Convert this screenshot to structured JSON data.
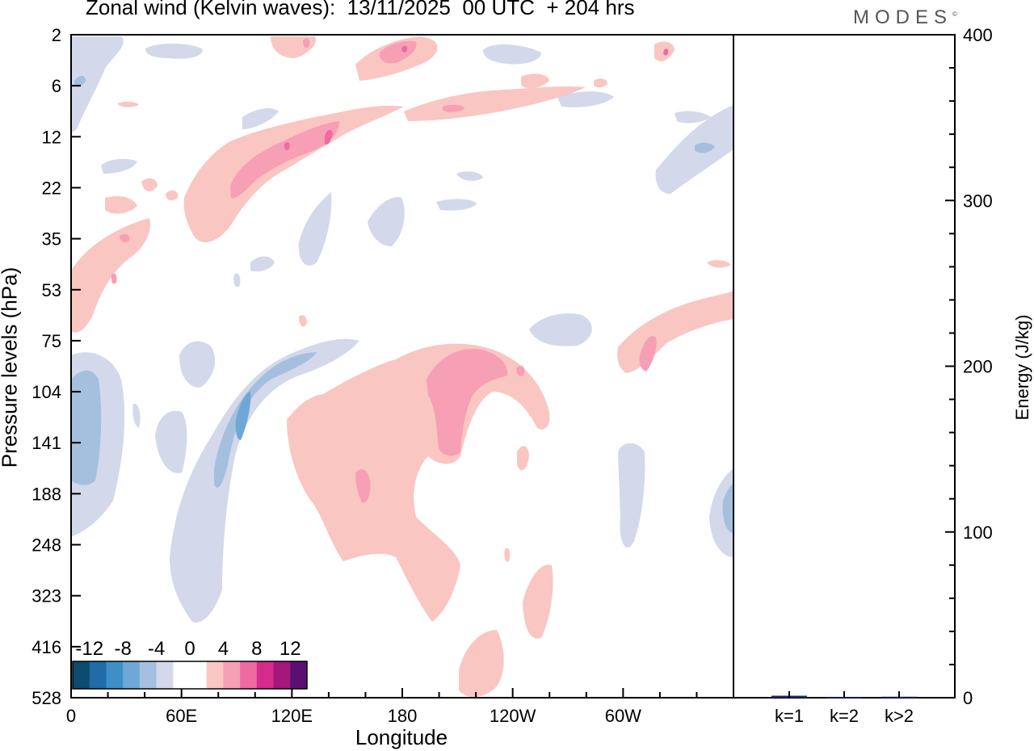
{
  "title": "Zonal wind (Kelvin waves):  13/11/2025  00 UTC  + 204 hrs",
  "brand": "MODES",
  "brand_mark": "©",
  "chart_data": [
    {
      "type": "heatmap",
      "title": "Zonal wind (Kelvin waves):  13/11/2025  00 UTC  + 204 hrs",
      "xlabel": "Longitude",
      "ylabel": "Pressure levels (hPa)",
      "x_ticks": [
        "0",
        "60E",
        "120E",
        "180",
        "120W",
        "60W"
      ],
      "x_tick_degrees": [
        0,
        60,
        120,
        180,
        240,
        300
      ],
      "x_range_degrees": [
        0,
        360
      ],
      "y_levels": [
        "2",
        "6",
        "12",
        "22",
        "35",
        "53",
        "75",
        "104",
        "141",
        "188",
        "248",
        "323",
        "416",
        "528"
      ],
      "colorbar": {
        "labels": [
          "-12",
          "-8",
          "-4",
          "0",
          "4",
          "8",
          "12"
        ],
        "colors": [
          "#0c4a6e",
          "#1f6ca6",
          "#3e8fc6",
          "#6fa8d6",
          "#a5bfdf",
          "#d3d8ea",
          "#ffffff",
          "#ffffff",
          "#f9c6c2",
          "#f79fb5",
          "#ee6aa1",
          "#d62a8d",
          "#a3187a",
          "#5b0f72"
        ]
      },
      "features": [
        {
          "name": "upper-level positive band",
          "sign": "positive",
          "peak": 8
        },
        {
          "name": "mid-level negative tilted band near 90E",
          "sign": "negative",
          "peak": -8
        },
        {
          "name": "broad positive region near date line",
          "sign": "positive",
          "peak": 8
        },
        {
          "name": "negative region near 0-20E",
          "sign": "negative",
          "peak": -6
        }
      ]
    },
    {
      "type": "bar",
      "ylabel": "Energy (J/kg)",
      "categories": [
        "k=1",
        "k=2",
        "k>2"
      ],
      "values": [
        1.2,
        0.2,
        0.6
      ],
      "ylim": [
        0,
        400
      ],
      "y_ticks": [
        "0",
        "100",
        "200",
        "300",
        "400"
      ],
      "bar_color": "#1c2a6b"
    }
  ]
}
